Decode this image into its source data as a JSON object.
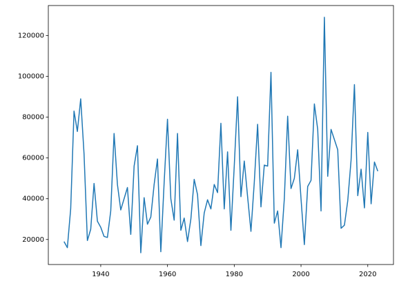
{
  "chart_data": {
    "type": "line",
    "x": [
      1929,
      1930,
      1931,
      1932,
      1933,
      1934,
      1935,
      1936,
      1937,
      1938,
      1939,
      1940,
      1941,
      1942,
      1943,
      1944,
      1945,
      1946,
      1947,
      1948,
      1949,
      1950,
      1951,
      1952,
      1953,
      1954,
      1955,
      1956,
      1957,
      1958,
      1959,
      1960,
      1961,
      1962,
      1963,
      1964,
      1965,
      1966,
      1967,
      1968,
      1969,
      1970,
      1971,
      1972,
      1973,
      1974,
      1975,
      1976,
      1977,
      1978,
      1979,
      1980,
      1981,
      1982,
      1983,
      1984,
      1985,
      1986,
      1987,
      1988,
      1989,
      1990,
      1991,
      1992,
      1993,
      1994,
      1995,
      1996,
      1997,
      1998,
      1999,
      2000,
      2001,
      2002,
      2003,
      2004,
      2005,
      2006,
      2007,
      2008,
      2009,
      2010,
      2011,
      2012,
      2013,
      2014,
      2015,
      2016,
      2017,
      2018,
      2019,
      2020,
      2021,
      2022,
      2023
    ],
    "series": [
      {
        "color": "#1f77b4",
        "values": [
          19000,
          16000,
          35000,
          83000,
          73000,
          89000,
          62000,
          19500,
          25000,
          47500,
          29000,
          26000,
          21500,
          21000,
          34000,
          72000,
          47000,
          34500,
          40000,
          45500,
          22500,
          56000,
          66000,
          13500,
          40500,
          27500,
          31000,
          47000,
          59500,
          14000,
          48000,
          79000,
          40000,
          29500,
          72000,
          24500,
          30500,
          19000,
          30000,
          49500,
          42000,
          17000,
          33000,
          39500,
          35000,
          47000,
          43000,
          77000,
          35000,
          63000,
          24500,
          56000,
          90000,
          41000,
          58500,
          41000,
          24000,
          48000,
          76500,
          36000,
          56500,
          56000,
          102000,
          28000,
          34000,
          16000,
          40000,
          80500,
          45000,
          50000,
          64000,
          40000,
          17500,
          46000,
          49000,
          86500,
          74000,
          34000,
          129000,
          51000,
          74000,
          69000,
          64000,
          25500,
          27000,
          39000,
          59000,
          96000,
          41500,
          54500,
          35500,
          72500,
          37500,
          58000,
          53500
        ]
      }
    ],
    "xlim": [
      1924.3,
      2027.7
    ],
    "xticks": [
      1940,
      1960,
      1980,
      2000,
      2020
    ],
    "ylim": [
      7725,
      134775
    ],
    "yticks": [
      20000,
      40000,
      60000,
      80000,
      100000,
      120000
    ]
  }
}
